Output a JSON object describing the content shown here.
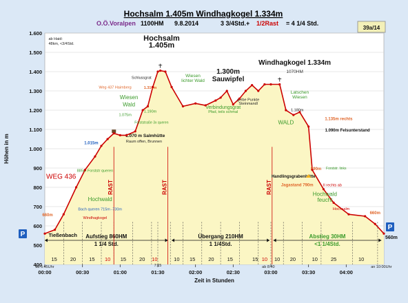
{
  "header": {
    "title": "Hochsalm 1.405m Windhagkogel 1.334m",
    "org": "O.Ö.Voralpen",
    "start_elevation": "1100HM",
    "date": "9.8.2014",
    "time_a": "3 3/4Std.+",
    "time_b": "1/2Rast",
    "time_c": "= 4 1/4 Std.",
    "badge": "39a/14"
  },
  "colors": {
    "profile_line": "#cc0000",
    "fill": "#fbf6c4",
    "grid": "#cfcfcf",
    "rast": "#cc0000",
    "green_label": "#3a9a2a",
    "blue_label": "#1f5fbf",
    "orange_label": "#e0662a",
    "bg": "#dbe8f6"
  },
  "chart_data": {
    "type": "area",
    "title": "Hochsalm 1.405m Windhagkogel 1.334m",
    "xlabel": "Zeit in Stunden",
    "ylabel": "Höhen in m",
    "xlim": [
      0,
      270
    ],
    "ylim": [
      400,
      1600
    ],
    "grid": true,
    "x_ticks": [
      {
        "v": 0,
        "label": "00:00"
      },
      {
        "v": 30,
        "label": "00:30"
      },
      {
        "v": 60,
        "label": "01:00"
      },
      {
        "v": 90,
        "label": "01:30"
      },
      {
        "v": 120,
        "label": "02:00"
      },
      {
        "v": 150,
        "label": "02:30"
      },
      {
        "v": 180,
        "label": "03:00"
      },
      {
        "v": 210,
        "label": "03:30"
      },
      {
        "v": 240,
        "label": "04:00"
      }
    ],
    "y_ticks": [
      {
        "v": 400,
        "label": "400"
      },
      {
        "v": 500,
        "label": "500"
      },
      {
        "v": 600,
        "label": "600"
      },
      {
        "v": 700,
        "label": "700"
      },
      {
        "v": 800,
        "label": "800"
      },
      {
        "v": 900,
        "label": "900"
      },
      {
        "v": 1000,
        "label": "1.000"
      },
      {
        "v": 1100,
        "label": "1.100"
      },
      {
        "v": 1200,
        "label": "1.200"
      },
      {
        "v": 1300,
        "label": "1.300"
      },
      {
        "v": 1400,
        "label": "1.400"
      },
      {
        "v": 1500,
        "label": "1.500"
      },
      {
        "v": 1600,
        "label": "1.600"
      }
    ],
    "series": [
      {
        "x": [
          0,
          8,
          15,
          25,
          32,
          40,
          45,
          50,
          55,
          60,
          65,
          72,
          78,
          82,
          86,
          90,
          92,
          96,
          101,
          110,
          120,
          128,
          136,
          140,
          145,
          150,
          155,
          160,
          165,
          170,
          175,
          180,
          187,
          192,
          198,
          203,
          210,
          213,
          222,
          230,
          242,
          255,
          263,
          270
        ],
        "y": [
          560,
          580,
          660,
          800,
          890,
          960,
          1015,
          1050,
          1080,
          1070,
          1070,
          1090,
          1200,
          1220,
          1320,
          1400,
          1405,
          1400,
          1320,
          1220,
          1235,
          1225,
          1250,
          1265,
          1300,
          1230,
          1260,
          1300,
          1330,
          1300,
          1334,
          1334,
          1334,
          1200,
          1175,
          1190,
          1115,
          890,
          790,
          720,
          660,
          650,
          610,
          560
        ]
      }
    ],
    "segment_minutes": [
      {
        "x": 7.5,
        "label": "15"
      },
      {
        "x": 22.5,
        "label": "20"
      },
      {
        "x": 37.5,
        "label": "15"
      },
      {
        "x": 50,
        "label": "10"
      },
      {
        "x": 62.5,
        "label": "15"
      },
      {
        "x": 77.5,
        "label": "20"
      },
      {
        "x": 87.5,
        "label": "10"
      },
      {
        "x": 105,
        "label": "10"
      },
      {
        "x": 117.5,
        "label": "15"
      },
      {
        "x": 132.5,
        "label": "20"
      },
      {
        "x": 147.5,
        "label": "15"
      },
      {
        "x": 167.5,
        "label": "15"
      },
      {
        "x": 175,
        "label": "10"
      },
      {
        "x": 185,
        "label": "10"
      },
      {
        "x": 197.5,
        "label": "20"
      },
      {
        "x": 215,
        "label": "10"
      },
      {
        "x": 230,
        "label": "25"
      },
      {
        "x": 252,
        "label": "10"
      }
    ],
    "segment_dividers": [
      15,
      30,
      45,
      55,
      70,
      85,
      90,
      100,
      110,
      125,
      140,
      155,
      170,
      180,
      190,
      205,
      220,
      245,
      265
    ],
    "rast_positions": [
      55,
      98,
      181
    ],
    "phases": [
      {
        "x1": 0,
        "x2": 98,
        "line1": "Aufstieg 860HM",
        "line2": "1 1/4 Std."
      },
      {
        "x1": 101,
        "x2": 179,
        "line1": "Übergang 210HM",
        "line2": "1 1/4Std."
      },
      {
        "x1": 182,
        "x2": 268,
        "line1": "Abstieg 30HM",
        "line2": "<1 1/4Std."
      }
    ],
    "annotations": [
      {
        "text": "Hochsalm",
        "x": 93,
        "y": 1560,
        "size": 11,
        "weight": "bold",
        "color": "#111"
      },
      {
        "text": "1.405m",
        "x": 93,
        "y": 1525,
        "size": 11,
        "weight": "bold",
        "color": "#111"
      },
      {
        "text": "1.300m",
        "x": 146,
        "y": 1390,
        "size": 10,
        "weight": "bold",
        "color": "#111"
      },
      {
        "text": "Sauwipfel",
        "x": 146,
        "y": 1350,
        "size": 10,
        "weight": "bold",
        "color": "#111"
      },
      {
        "text": "Windhagkogel 1.334m",
        "x": 199,
        "y": 1435,
        "size": 10,
        "weight": "bold",
        "color": "#111"
      },
      {
        "text": "1070HM",
        "x": 199,
        "y": 1393,
        "size": 6.5,
        "weight": "normal",
        "color": "#333"
      },
      {
        "text": "ab Haid:",
        "x": 3,
        "y": 1565,
        "size": 5.5,
        "weight": "normal",
        "color": "#222",
        "anchor": "start"
      },
      {
        "text": "48km, <3/4Std.",
        "x": 3,
        "y": 1540,
        "size": 5.5,
        "weight": "normal",
        "color": "#222",
        "anchor": "start"
      },
      {
        "text": "Schlussgrat",
        "x": 77,
        "y": 1362,
        "size": 5.5,
        "weight": "normal",
        "color": "#222"
      },
      {
        "text": "Weg 437 Haimberg",
        "x": 56,
        "y": 1312,
        "size": 5.5,
        "weight": "normal",
        "color": "#e0662a"
      },
      {
        "text": "1.310m",
        "x": 84,
        "y": 1310,
        "size": 5.5,
        "weight": "bold",
        "color": "#e0662a"
      },
      {
        "text": "Wiesen",
        "x": 67,
        "y": 1258,
        "size": 8,
        "weight": "normal",
        "color": "#3a9a2a"
      },
      {
        "text": "Wald",
        "x": 67,
        "y": 1220,
        "size": 8,
        "weight": "normal",
        "color": "#3a9a2a"
      },
      {
        "text": "1.190m",
        "x": 84,
        "y": 1188,
        "size": 5.5,
        "weight": "normal",
        "color": "#3a9a2a"
      },
      {
        "text": "1.075m",
        "x": 64,
        "y": 1170,
        "size": 5.5,
        "weight": "normal",
        "color": "#3a9a2a"
      },
      {
        "text": "Forststraße 3x queren",
        "x": 85,
        "y": 1130,
        "size": 5,
        "weight": "normal",
        "color": "#3a9a2a"
      },
      {
        "text": "1.070 m Salmhütte",
        "x": 80,
        "y": 1060,
        "size": 6.5,
        "weight": "bold",
        "color": "#111"
      },
      {
        "text": "Raum offen, Brunnen",
        "x": 79,
        "y": 1032,
        "size": 5.5,
        "weight": "normal",
        "color": "#222"
      },
      {
        "text": "Wiesen",
        "x": 118,
        "y": 1372,
        "size": 6.5,
        "weight": "normal",
        "color": "#3a9a2a"
      },
      {
        "text": "lichter Wald",
        "x": 118,
        "y": 1346,
        "size": 6.5,
        "weight": "normal",
        "color": "#3a9a2a"
      },
      {
        "text": "Verbindungsgrat",
        "x": 142,
        "y": 1208,
        "size": 7,
        "weight": "normal",
        "color": "#3a9a2a"
      },
      {
        "text": "Pfad, teils schmal",
        "x": 142,
        "y": 1185,
        "size": 5.5,
        "weight": "normal",
        "color": "#3a9a2a"
      },
      {
        "text": "gelbe Punkte",
        "x": 162,
        "y": 1248,
        "size": 5.5,
        "weight": "normal",
        "color": "#222"
      },
      {
        "text": "Steinmandl",
        "x": 162,
        "y": 1228,
        "size": 5.5,
        "weight": "normal",
        "color": "#222"
      },
      {
        "text": "Latschen",
        "x": 203,
        "y": 1286,
        "size": 6.5,
        "weight": "normal",
        "color": "#3a9a2a"
      },
      {
        "text": "Wiesen",
        "x": 203,
        "y": 1260,
        "size": 6.5,
        "weight": "normal",
        "color": "#3a9a2a"
      },
      {
        "text": "1.180m",
        "x": 201,
        "y": 1195,
        "size": 5.5,
        "weight": "normal",
        "color": "#222"
      },
      {
        "text": "1.135m rechts",
        "x": 234,
        "y": 1148,
        "size": 6,
        "weight": "bold",
        "color": "#e0662a"
      },
      {
        "text": "WALD",
        "x": 192,
        "y": 1127,
        "size": 8,
        "weight": "normal",
        "color": "#3a9a2a"
      },
      {
        "text": "1.090m Felsunterstand",
        "x": 241,
        "y": 1090,
        "size": 6,
        "weight": "bold",
        "color": "#111"
      },
      {
        "text": "1.015m",
        "x": 37,
        "y": 1023,
        "size": 6,
        "weight": "bold",
        "color": "#1f5fbf"
      },
      {
        "text": "885m Forststr queren",
        "x": 40,
        "y": 880,
        "size": 5.5,
        "weight": "normal",
        "color": "#3a9a2a"
      },
      {
        "text": "WEG 436",
        "x": 13,
        "y": 845,
        "size": 10,
        "weight": "normal",
        "color": "#cc0000"
      },
      {
        "text": "Hochwald",
        "x": 44,
        "y": 728,
        "size": 8,
        "weight": "normal",
        "color": "#3a9a2a"
      },
      {
        "text": "Bach queren 715m -730m",
        "x": 44,
        "y": 680,
        "size": 5.5,
        "weight": "normal",
        "color": "#1f5fbf"
      },
      {
        "text": "Windhagkogel",
        "x": 40,
        "y": 635,
        "size": 5.5,
        "weight": "normal",
        "color": "#cc0000"
      },
      {
        "text": "660m",
        "x": -2,
        "y": 650,
        "size": 6,
        "weight": "bold",
        "color": "#e0662a",
        "anchor": "start"
      },
      {
        "text": "Tießenbach",
        "x": 3,
        "y": 542,
        "size": 7.5,
        "weight": "bold",
        "color": "#111",
        "anchor": "start"
      },
      {
        "text": "890m",
        "x": 216,
        "y": 890,
        "size": 6,
        "weight": "bold",
        "color": "#e0662a"
      },
      {
        "text": "Forststr. links",
        "x": 232,
        "y": 893,
        "size": 5,
        "weight": "normal",
        "color": "#3a9a2a"
      },
      {
        "text": "Handlingsgrabenhütte",
        "x": 198,
        "y": 850,
        "size": 6,
        "weight": "bold",
        "color": "#111"
      },
      {
        "text": "Jagastand 790m",
        "x": 201,
        "y": 805,
        "size": 6,
        "weight": "bold",
        "color": "#e0662a"
      },
      {
        "text": "II rechts ab",
        "x": 229,
        "y": 805,
        "size": 5.5,
        "weight": "normal",
        "color": "#cc0000"
      },
      {
        "text": "Hochwald",
        "x": 223,
        "y": 755,
        "size": 8,
        "weight": "normal",
        "color": "#3a9a2a"
      },
      {
        "text": "feucht",
        "x": 223,
        "y": 725,
        "size": 8,
        "weight": "normal",
        "color": "#3a9a2a"
      },
      {
        "text": "Hochsalm",
        "x": 236,
        "y": 683,
        "size": 5.5,
        "weight": "normal",
        "color": "#cc0000"
      },
      {
        "text": "660m",
        "x": 263,
        "y": 660,
        "size": 6,
        "weight": "bold",
        "color": "#e0662a"
      },
      {
        "text": "560m",
        "x": 276,
        "y": 532,
        "size": 7,
        "weight": "bold",
        "color": "#111",
        "anchor": "middle"
      }
    ],
    "time_marks": [
      {
        "x": 0,
        "label": "ab 5:45Uhr"
      },
      {
        "x": 90,
        "label": "7:15"
      },
      {
        "x": 178,
        "label": "ab 8:40"
      },
      {
        "x": 268,
        "label": "an 10:00Uhr"
      }
    ]
  }
}
